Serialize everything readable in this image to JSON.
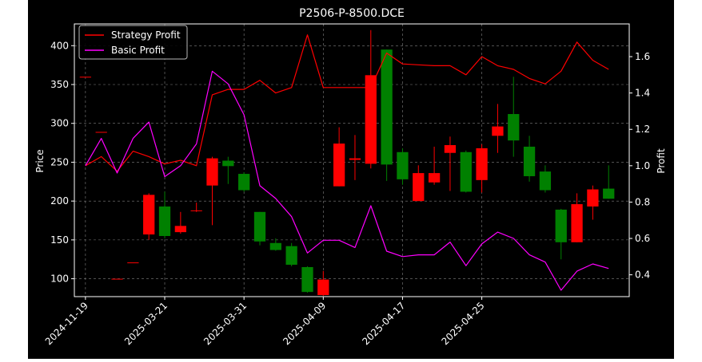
{
  "chart_data": {
    "type": "candlestick",
    "title": "P2506-P-8500.DCE",
    "ylabel_left": "Price",
    "ylabel_right": "Profit",
    "ylim_left": [
      77,
      428
    ],
    "ylim_right": [
      0.28,
      1.78
    ],
    "left_ticks": [
      100,
      150,
      200,
      250,
      300,
      350,
      400
    ],
    "right_ticks": [
      "0.4",
      "0.6",
      "0.8",
      "1.0",
      "1.2",
      "1.4",
      "1.6"
    ],
    "x_tick_labels": [
      "2024-11-19",
      "2025-03-21",
      "2025-03-31",
      "2025-04-09",
      "2025-04-17",
      "2025-04-25"
    ],
    "x_tick_index": [
      0,
      5,
      10,
      15,
      20,
      25
    ],
    "grid": true,
    "legend_position": "upper-left",
    "up_color": "#ff0000",
    "down_color": "#008000",
    "candles": [
      {
        "open": 360,
        "close": 360,
        "high": 360,
        "low": 360
      },
      {
        "open": 289,
        "close": 289,
        "high": 289,
        "low": 289
      },
      {
        "open": 100,
        "close": 100,
        "high": 100,
        "low": 100
      },
      {
        "open": 121,
        "close": 121,
        "high": 121,
        "low": 121
      },
      {
        "open": 157,
        "close": 208,
        "high": 210,
        "low": 150
      },
      {
        "open": 193,
        "close": 155,
        "high": 212,
        "low": 152
      },
      {
        "open": 160,
        "close": 168,
        "high": 186,
        "low": 158
      },
      {
        "open": 187,
        "close": 188,
        "high": 198,
        "low": 186
      },
      {
        "open": 220,
        "close": 255,
        "high": 257,
        "low": 169
      },
      {
        "open": 252,
        "close": 245,
        "high": 257,
        "low": 222
      },
      {
        "open": 235,
        "close": 214,
        "high": 237,
        "low": 212
      },
      {
        "open": 186,
        "close": 148,
        "high": 186,
        "low": 143
      },
      {
        "open": 146,
        "close": 137,
        "high": 152,
        "low": 136
      },
      {
        "open": 142,
        "close": 118,
        "high": 146,
        "low": 116
      },
      {
        "open": 115,
        "close": 83,
        "high": 116,
        "low": 82
      },
      {
        "open": 79,
        "close": 99,
        "high": 110,
        "low": 78
      },
      {
        "open": 219,
        "close": 274,
        "high": 295,
        "low": 219
      },
      {
        "open": 253,
        "close": 255,
        "high": 285,
        "low": 227
      },
      {
        "open": 248,
        "close": 362,
        "high": 420,
        "low": 242
      },
      {
        "open": 395,
        "close": 247,
        "high": 395,
        "low": 226
      },
      {
        "open": 263,
        "close": 228,
        "high": 268,
        "low": 221
      },
      {
        "open": 200,
        "close": 236,
        "high": 246,
        "low": 200
      },
      {
        "open": 224,
        "close": 236,
        "high": 270,
        "low": 221
      },
      {
        "open": 262,
        "close": 272,
        "high": 283,
        "low": 213
      },
      {
        "open": 263,
        "close": 212,
        "high": 265,
        "low": 211
      },
      {
        "open": 227,
        "close": 268,
        "high": 273,
        "low": 211
      },
      {
        "open": 284,
        "close": 296,
        "high": 325,
        "low": 262
      },
      {
        "open": 312,
        "close": 278,
        "high": 360,
        "low": 257
      },
      {
        "open": 270,
        "close": 232,
        "high": 284,
        "low": 225
      },
      {
        "open": 238,
        "close": 214,
        "high": 246,
        "low": 211
      },
      {
        "open": 189,
        "close": 147,
        "high": 190,
        "low": 125
      },
      {
        "open": 147,
        "close": 196,
        "high": 210,
        "low": 147
      },
      {
        "open": 193,
        "close": 215,
        "high": 220,
        "low": 176
      },
      {
        "open": 216,
        "close": 203,
        "high": 246,
        "low": 203
      }
    ],
    "series": [
      {
        "name": "Strategy Profit",
        "color": "#ff0000",
        "values": [
          1.0,
          1.05,
          0.97,
          1.08,
          1.05,
          1.01,
          1.03,
          1.0,
          1.39,
          1.42,
          1.42,
          1.47,
          1.4,
          1.43,
          1.72,
          1.43,
          1.43,
          1.43,
          1.43,
          1.62,
          1.56,
          1.555,
          1.55,
          1.55,
          1.5,
          1.6,
          1.55,
          1.53,
          1.48,
          1.45,
          1.52,
          1.68,
          1.58,
          1.53
        ]
      },
      {
        "name": "Basic Profit",
        "color": "#ff00ff",
        "values": [
          1.0,
          1.15,
          0.96,
          1.15,
          1.24,
          0.94,
          1.0,
          1.12,
          1.52,
          1.45,
          1.28,
          0.89,
          0.82,
          0.72,
          0.52,
          0.59,
          0.59,
          0.55,
          0.78,
          0.53,
          0.5,
          0.51,
          0.51,
          0.58,
          0.45,
          0.57,
          0.635,
          0.6,
          0.51,
          0.47,
          0.315,
          0.42,
          0.46,
          0.435
        ]
      }
    ]
  }
}
